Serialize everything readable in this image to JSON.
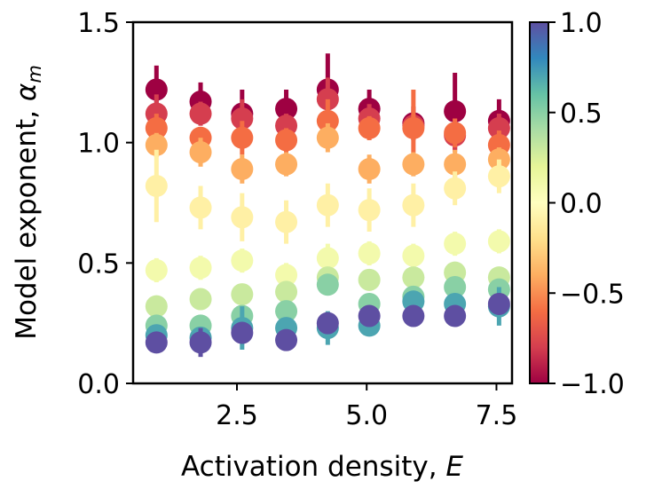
{
  "chart_data": {
    "type": "scatter",
    "xlabel": "Activation density, E",
    "xlabel_main": "Activation density, ",
    "xlabel_symbol": "E",
    "ylabel": "Model exponent, α_m",
    "ylabel_main": "Model exponent, ",
    "ylabel_symbol": "α",
    "ylabel_subscript": "m",
    "xlim": [
      0.5,
      7.8
    ],
    "ylim": [
      0.0,
      1.5
    ],
    "xticks": [
      "2.5",
      "5.0",
      "7.5"
    ],
    "yticks": [
      "0.0",
      "0.5",
      "1.0",
      "1.5"
    ],
    "colorbar": {
      "range": [
        -1.0,
        1.0
      ],
      "ticks": [
        "1.0",
        "0.5",
        "0.0",
        "−0.5",
        "−1.0"
      ],
      "colormap": "Spectral",
      "stops": [
        "#9e0142",
        "#d53e4f",
        "#f46d43",
        "#fdae61",
        "#fee08b",
        "#ffffbf",
        "#e6f598",
        "#abdda4",
        "#66c2a5",
        "#3288bd",
        "#5e4fa2"
      ]
    },
    "x": [
      0.95,
      1.8,
      2.6,
      3.45,
      4.25,
      5.05,
      5.9,
      6.7,
      7.55
    ],
    "series": [
      {
        "c": -1.0,
        "y": [
          1.22,
          1.17,
          1.12,
          1.14,
          1.22,
          1.14,
          1.08,
          1.13,
          1.09
        ],
        "err": [
          0.1,
          0.08,
          0.1,
          0.08,
          0.15,
          0.08,
          0.07,
          0.16,
          0.09
        ]
      },
      {
        "c": -0.8,
        "y": [
          1.12,
          1.12,
          1.1,
          1.07,
          1.18,
          1.1,
          1.07,
          1.03,
          1.06
        ],
        "err": [
          0.08,
          0.05,
          0.08,
          0.05,
          0.09,
          0.06,
          0.05,
          0.07,
          0.06
        ]
      },
      {
        "c": -0.6,
        "y": [
          1.06,
          1.02,
          1.02,
          1.01,
          1.09,
          1.06,
          1.06,
          1.04,
          0.99
        ],
        "err": [
          0.06,
          0.04,
          0.07,
          0.05,
          0.09,
          0.05,
          0.16,
          0.06,
          0.06
        ]
      },
      {
        "c": -0.4,
        "y": [
          0.99,
          0.96,
          0.89,
          0.91,
          1.02,
          0.89,
          0.91,
          0.91,
          0.93
        ],
        "err": [
          0.05,
          0.06,
          0.06,
          0.05,
          0.06,
          0.06,
          0.05,
          0.06,
          0.05
        ]
      },
      {
        "c": -0.1,
        "y": [
          0.82,
          0.73,
          0.69,
          0.67,
          0.74,
          0.72,
          0.74,
          0.81,
          0.86
        ],
        "err": [
          0.15,
          0.09,
          0.1,
          0.09,
          0.09,
          0.09,
          0.09,
          0.07,
          0.07
        ]
      },
      {
        "c": 0.1,
        "y": [
          0.47,
          0.48,
          0.51,
          0.45,
          0.52,
          0.54,
          0.53,
          0.58,
          0.59
        ],
        "err": [
          0.05,
          0.05,
          0.05,
          0.05,
          0.06,
          0.05,
          0.05,
          0.05,
          0.05
        ]
      },
      {
        "c": 0.3,
        "y": [
          0.32,
          0.35,
          0.37,
          0.38,
          0.44,
          0.43,
          0.44,
          0.46,
          0.44
        ],
        "err": [
          0.03,
          0.03,
          0.03,
          0.03,
          0.03,
          0.03,
          0.03,
          0.03,
          0.03
        ]
      },
      {
        "c": 0.5,
        "y": [
          0.24,
          0.24,
          0.28,
          0.3,
          0.41,
          0.33,
          0.36,
          0.4,
          0.39
        ],
        "err": [
          0.03,
          0.03,
          0.03,
          0.03,
          0.03,
          0.03,
          0.03,
          0.03,
          0.03
        ]
      },
      {
        "c": 0.7,
        "y": [
          0.2,
          0.19,
          0.23,
          0.23,
          0.23,
          0.24,
          0.34,
          0.33,
          0.32
        ],
        "err": [
          0.03,
          0.03,
          0.09,
          0.03,
          0.07,
          0.03,
          0.04,
          0.03,
          0.08
        ]
      },
      {
        "c": 1.0,
        "y": [
          0.17,
          0.17,
          0.21,
          0.18,
          0.25,
          0.28,
          0.28,
          0.28,
          0.33
        ],
        "err": [
          0.03,
          0.06,
          0.03,
          0.03,
          0.03,
          0.03,
          0.03,
          0.03,
          0.03
        ]
      }
    ]
  }
}
